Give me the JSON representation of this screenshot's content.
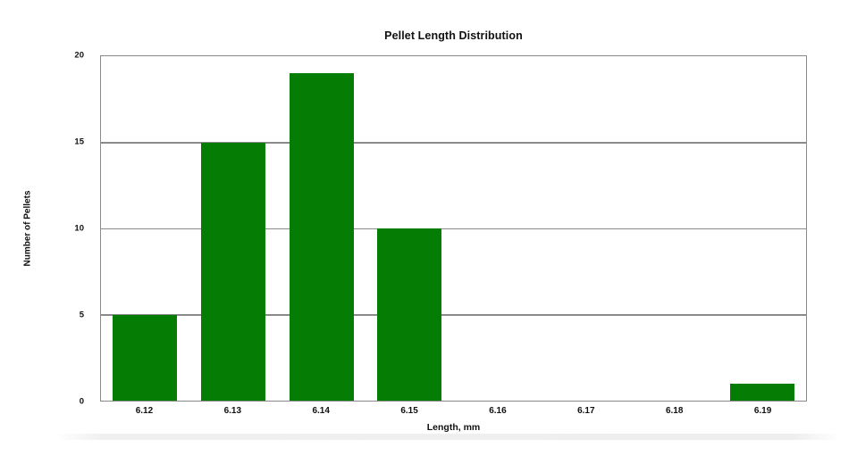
{
  "chart_data": {
    "type": "bar",
    "title": "Pellet Length Distribution",
    "xlabel": "Length, mm",
    "ylabel": "Number of Pellets",
    "categories": [
      "6.12",
      "6.13",
      "6.14",
      "6.15",
      "6.16",
      "6.17",
      "6.18",
      "6.19"
    ],
    "values": [
      5,
      15,
      19,
      10,
      0,
      0,
      0,
      1
    ],
    "ylim": [
      0,
      20
    ],
    "yticks": [
      0,
      5,
      10,
      15,
      20
    ],
    "bar_color": "#057d05",
    "grid_color": "#8a8a8a",
    "grid": true,
    "legend": false,
    "background_color": "#ffffff"
  }
}
